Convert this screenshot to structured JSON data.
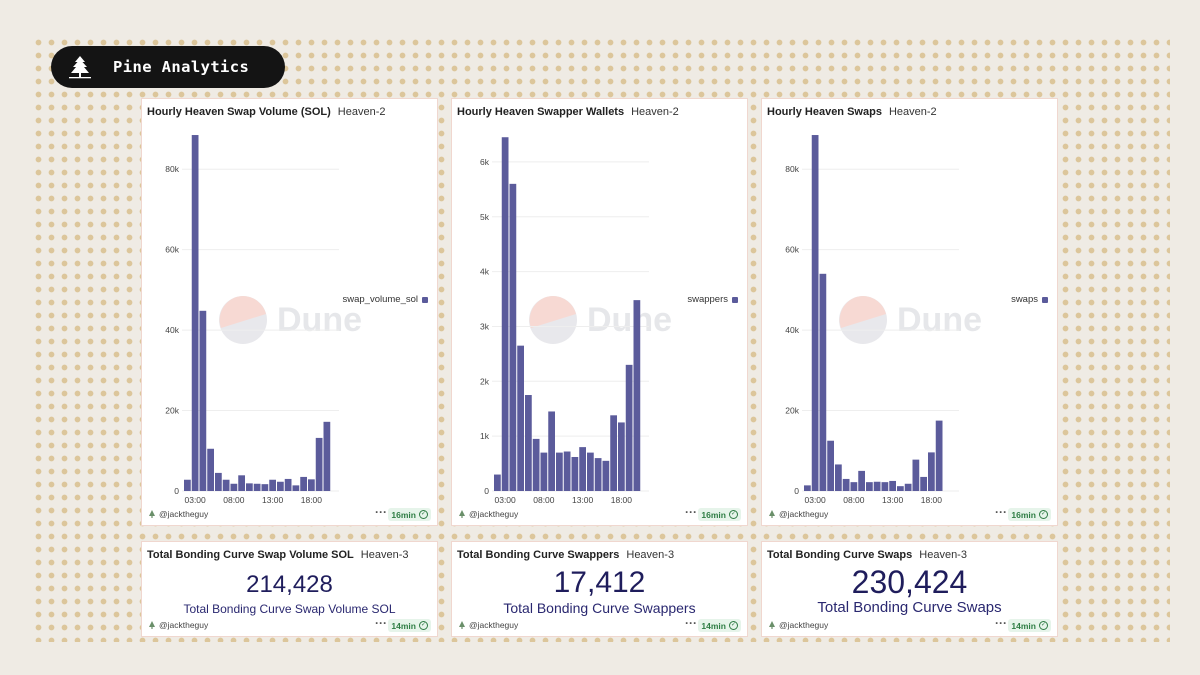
{
  "brand": {
    "name": "Pine Analytics",
    "icon": "pine-tree-icon"
  },
  "colors": {
    "bar": "#5b5b9b",
    "grid": "#eeeeee",
    "background": "#efebe4",
    "dots": "#dcc69b",
    "counter": "#1f1d5c"
  },
  "charts": [
    {
      "title": "Hourly Heaven Swap Volume (SOL)",
      "subtitle": "Heaven-2",
      "legend": "swap_volume_sol",
      "author": "@jacktheguy",
      "age": "16min",
      "more": "···",
      "watermark": "Dune"
    },
    {
      "title": "Hourly Heaven Swapper Wallets",
      "subtitle": "Heaven-2",
      "legend": "swappers",
      "author": "@jacktheguy",
      "age": "16min",
      "more": "···",
      "watermark": "Dune"
    },
    {
      "title": "Hourly Heaven Swaps",
      "subtitle": "Heaven-2",
      "legend": "swaps",
      "author": "@jacktheguy",
      "age": "16min",
      "more": "···",
      "watermark": "Dune"
    }
  ],
  "counters": [
    {
      "title": "Total Bonding Curve Swap Volume SOL",
      "subtitle": "Heaven-3",
      "value": "214,428",
      "label": "Total Bonding Curve Swap Volume SOL",
      "author": "@jacktheguy",
      "age": "14min",
      "more": "···"
    },
    {
      "title": "Total Bonding Curve Swappers",
      "subtitle": "Heaven-3",
      "value": "17,412",
      "label": "Total Bonding Curve Swappers",
      "author": "@jacktheguy",
      "age": "14min",
      "more": "···"
    },
    {
      "title": "Total Bonding Curve Swaps",
      "subtitle": "Heaven-3",
      "value": "230,424",
      "label": "Total Bonding Curve Swaps",
      "author": "@jacktheguy",
      "age": "14min",
      "more": "···"
    }
  ],
  "chart_data": [
    {
      "type": "bar",
      "title": "Hourly Heaven Swap Volume (SOL)",
      "x_ticks": [
        "03:00",
        "08:00",
        "13:00",
        "18:00"
      ],
      "x_tick_index": [
        1,
        6,
        11,
        16
      ],
      "y_ticks": [
        "0",
        "20k",
        "40k",
        "60k",
        "80k"
      ],
      "y_tick_values": [
        0,
        20000,
        40000,
        60000,
        80000
      ],
      "ylim": [
        0,
        90000
      ],
      "series": [
        {
          "name": "swap_volume_sol",
          "values": [
            2800,
            88500,
            44800,
            10500,
            4500,
            2800,
            1800,
            3900,
            1900,
            1800,
            1700,
            2800,
            2300,
            3000,
            1400,
            3500,
            2900,
            13200,
            17200
          ]
        }
      ]
    },
    {
      "type": "bar",
      "title": "Hourly Heaven Swapper Wallets",
      "x_ticks": [
        "03:00",
        "08:00",
        "13:00",
        "18:00"
      ],
      "x_tick_index": [
        1,
        6,
        11,
        16
      ],
      "y_ticks": [
        "0",
        "1k",
        "2k",
        "3k",
        "4k",
        "5k",
        "6k"
      ],
      "y_tick_values": [
        0,
        1000,
        2000,
        3000,
        4000,
        5000,
        6000
      ],
      "ylim": [
        0,
        6600
      ],
      "series": [
        {
          "name": "swappers",
          "values": [
            300,
            6450,
            5600,
            2650,
            1750,
            950,
            700,
            1450,
            700,
            720,
            620,
            800,
            700,
            600,
            550,
            1380,
            1250,
            2300,
            3480
          ]
        }
      ]
    },
    {
      "type": "bar",
      "title": "Hourly Heaven Swaps",
      "x_ticks": [
        "03:00",
        "08:00",
        "13:00",
        "18:00"
      ],
      "x_tick_index": [
        1,
        6,
        11,
        16
      ],
      "y_ticks": [
        "0",
        "20k",
        "40k",
        "60k",
        "80k"
      ],
      "y_tick_values": [
        0,
        20000,
        40000,
        60000,
        80000
      ],
      "ylim": [
        0,
        90000
      ],
      "series": [
        {
          "name": "swaps",
          "values": [
            1400,
            88500,
            54000,
            12500,
            6600,
            3000,
            2200,
            5000,
            2200,
            2300,
            2200,
            2500,
            1200,
            1800,
            7800,
            3500,
            9600,
            17500
          ]
        }
      ]
    }
  ]
}
